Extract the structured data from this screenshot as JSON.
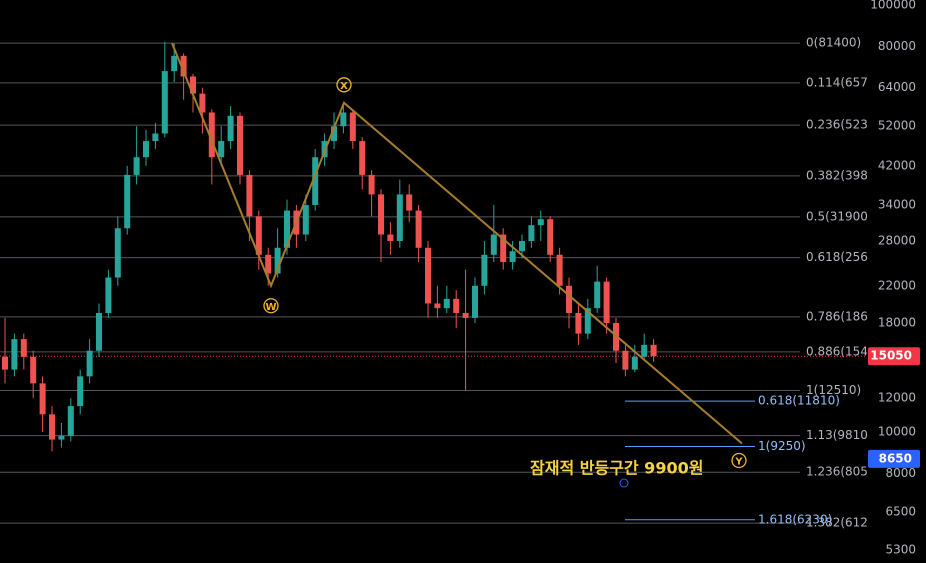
{
  "chart_data": {
    "type": "candlestick",
    "log_scale": true,
    "up_color": "#26a69a",
    "down_color": "#ef5350",
    "ylim": [
      4935,
      102700
    ],
    "yticks": [
      100000,
      80000,
      64000,
      52000,
      42000,
      34000,
      28000,
      22000,
      18000,
      12000,
      10000,
      8000,
      6500,
      5300
    ],
    "open": [
      15000,
      14000,
      16500,
      15000,
      13000,
      11000,
      9600,
      9800,
      11500,
      13500,
      15500,
      19000,
      23000,
      30000,
      40000,
      44000,
      48000,
      50000,
      70000,
      76000,
      68000,
      62000,
      56000,
      44000,
      48000,
      55000,
      40000,
      32000,
      26000,
      23500,
      27000,
      33000,
      29000,
      34000,
      44000,
      48000,
      52000,
      56000,
      48000,
      40000,
      36000,
      29000,
      28000,
      36000,
      33000,
      27000,
      20000,
      19500,
      20500,
      19000,
      18500,
      22000,
      26000,
      29000,
      25000,
      26500,
      28000,
      30500,
      31500,
      26000,
      22000,
      19000,
      17000,
      19500,
      22500,
      18000,
      15500,
      14000,
      15000,
      16000
    ],
    "high": [
      18500,
      17000,
      17000,
      15500,
      13500,
      11500,
      10500,
      12000,
      14000,
      16500,
      20000,
      24000,
      32000,
      42000,
      52000,
      51000,
      53000,
      82000,
      81400,
      77000,
      69000,
      64000,
      57000,
      52000,
      58000,
      56000,
      41000,
      33000,
      27000,
      30000,
      35000,
      34000,
      36000,
      46000,
      50000,
      56000,
      59000,
      57000,
      49000,
      41000,
      37000,
      31000,
      39000,
      38000,
      34000,
      28000,
      22000,
      22000,
      21500,
      24000,
      23000,
      28000,
      34000,
      30000,
      28000,
      29000,
      32000,
      33000,
      32000,
      27000,
      23000,
      20000,
      20500,
      24500,
      23000,
      18500,
      16000,
      16000,
      17000,
      16500
    ],
    "low": [
      13000,
      13500,
      14000,
      12000,
      10000,
      9000,
      9200,
      9500,
      11000,
      13000,
      15000,
      18500,
      22000,
      29000,
      38000,
      42000,
      46000,
      49000,
      66000,
      60000,
      56000,
      50000,
      38000,
      42000,
      46000,
      38000,
      28000,
      24000,
      22000,
      23000,
      26000,
      27000,
      28000,
      33000,
      42000,
      46000,
      50000,
      46000,
      37000,
      32000,
      25000,
      26000,
      27000,
      31000,
      25000,
      18500,
      18500,
      19000,
      17500,
      12510,
      18000,
      21000,
      25000,
      24000,
      24000,
      25500,
      27000,
      28000,
      25000,
      21000,
      17500,
      16000,
      16500,
      19000,
      17000,
      14500,
      13500,
      13800,
      14800,
      14600
    ],
    "close": [
      14000,
      16500,
      15000,
      13000,
      11000,
      9600,
      9800,
      11500,
      13500,
      15500,
      19000,
      23000,
      30000,
      40000,
      44000,
      48000,
      50000,
      70000,
      76000,
      68000,
      62000,
      56000,
      44000,
      48000,
      55000,
      40000,
      32000,
      26000,
      23500,
      27000,
      33000,
      29000,
      34000,
      44000,
      48000,
      52000,
      56000,
      48000,
      40000,
      36000,
      29000,
      28000,
      36000,
      33000,
      27000,
      20000,
      19500,
      20500,
      19000,
      18500,
      22000,
      26000,
      29000,
      25000,
      26500,
      28000,
      30500,
      31500,
      26000,
      22000,
      19000,
      17000,
      19500,
      22500,
      18000,
      15500,
      14000,
      15000,
      16000,
      15050
    ],
    "fib_levels": [
      {
        "value": 81400,
        "label": "0(81400)"
      },
      {
        "value": 65700,
        "label": "0.114(657"
      },
      {
        "value": 52300,
        "label": "0.236(523"
      },
      {
        "value": 39800,
        "label": "0.382(398"
      },
      {
        "value": 31900,
        "label": "0.5(31900"
      },
      {
        "value": 25600,
        "label": "0.618(256"
      },
      {
        "value": 18600,
        "label": "0.786(186"
      },
      {
        "value": 15400,
        "label": "0.886(154"
      },
      {
        "value": 12510,
        "label": "1(12510)"
      },
      {
        "value": 9810,
        "label": "1.13(9810"
      },
      {
        "value": 8050,
        "label": "1.236(805"
      },
      {
        "value": 6120,
        "label": "1.382(612"
      }
    ],
    "fib_levels_2": [
      {
        "value": 11810,
        "label": "0.618(11810)"
      },
      {
        "value": 9250,
        "label": "1(9250)"
      },
      {
        "value": 6230,
        "label": "1.618(6230)"
      }
    ],
    "price_labels": [
      {
        "value": 15050,
        "label": "15050",
        "color": "#f23645"
      },
      {
        "value": 8650,
        "label": "8650",
        "color": "#2962ff"
      }
    ],
    "wave": [
      {
        "value": 81400
      },
      {
        "value": 22000,
        "label": "W"
      },
      {
        "value": 59000,
        "label": "X"
      },
      {
        "value": 9400,
        "label": "Y"
      }
    ],
    "annotation": "잠재적 반등구간 9900원"
  }
}
